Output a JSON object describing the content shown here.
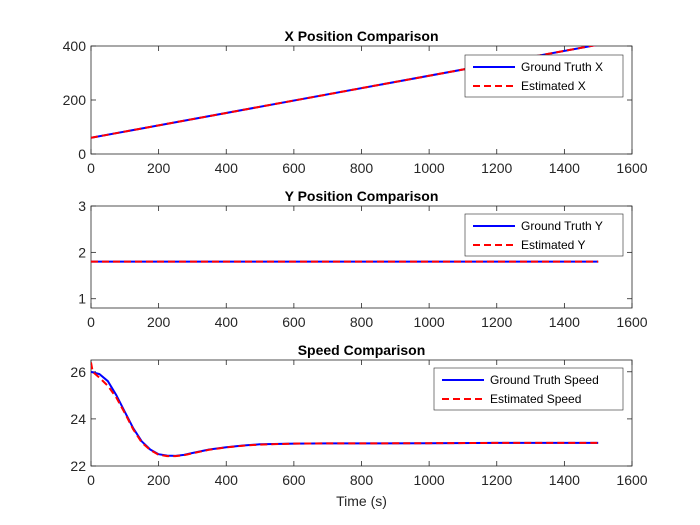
{
  "chart_data": [
    {
      "type": "line",
      "title": "X Position Comparison",
      "xlabel": "",
      "ylabel": "",
      "xlim": [
        0,
        1600
      ],
      "ylim": [
        0,
        400
      ],
      "xticks": [
        0,
        200,
        400,
        600,
        800,
        1000,
        1200,
        1400,
        1600
      ],
      "yticks": [
        0,
        200,
        400
      ],
      "grid": false,
      "legend_position": "top-right",
      "series": [
        {
          "name": "Ground Truth X",
          "color": "#0000ff",
          "style": "solid",
          "x": [
            0,
            1500
          ],
          "y": [
            60,
            405
          ]
        },
        {
          "name": "Estimated X",
          "color": "#ff0000",
          "style": "dashed",
          "x": [
            0,
            1500
          ],
          "y": [
            60,
            405
          ]
        }
      ]
    },
    {
      "type": "line",
      "title": "Y Position Comparison",
      "xlabel": "",
      "ylabel": "",
      "xlim": [
        0,
        1600
      ],
      "ylim": [
        0.8,
        3
      ],
      "xticks": [
        0,
        200,
        400,
        600,
        800,
        1000,
        1200,
        1400,
        1600
      ],
      "yticks": [
        1,
        2,
        3
      ],
      "grid": false,
      "legend_position": "top-right",
      "series": [
        {
          "name": "Ground Truth Y",
          "color": "#0000ff",
          "style": "solid",
          "x": [
            0,
            1500
          ],
          "y": [
            1.8,
            1.8
          ]
        },
        {
          "name": "Estimated Y",
          "color": "#ff0000",
          "style": "dashed",
          "x": [
            0,
            1500
          ],
          "y": [
            1.8,
            1.8
          ]
        }
      ]
    },
    {
      "type": "line",
      "title": "Speed Comparison",
      "xlabel": "Time (s)",
      "ylabel": "",
      "xlim": [
        0,
        1600
      ],
      "ylim": [
        22,
        26.5
      ],
      "xticks": [
        0,
        200,
        400,
        600,
        800,
        1000,
        1200,
        1400,
        1600
      ],
      "yticks": [
        22,
        24,
        26
      ],
      "grid": false,
      "legend_position": "top-right",
      "series": [
        {
          "name": "Ground Truth Speed",
          "color": "#0000ff",
          "style": "solid",
          "x": [
            0,
            25,
            50,
            75,
            100,
            125,
            150,
            175,
            200,
            225,
            250,
            275,
            300,
            350,
            400,
            450,
            500,
            600,
            700,
            800,
            1000,
            1200,
            1500
          ],
          "y": [
            26.0,
            25.9,
            25.6,
            25.0,
            24.3,
            23.6,
            23.05,
            22.7,
            22.5,
            22.44,
            22.43,
            22.47,
            22.55,
            22.7,
            22.8,
            22.87,
            22.92,
            22.95,
            22.96,
            22.96,
            22.97,
            22.98,
            22.98
          ]
        },
        {
          "name": "Estimated Speed",
          "color": "#ff0000",
          "style": "dashed",
          "x": [
            0,
            5,
            25,
            50,
            75,
            100,
            125,
            150,
            175,
            200,
            225,
            250,
            275,
            300,
            350,
            400,
            450,
            500,
            600,
            700,
            800,
            1000,
            1200,
            1500
          ],
          "y": [
            26.4,
            26.0,
            25.75,
            25.4,
            24.9,
            24.25,
            23.55,
            23.0,
            22.68,
            22.48,
            22.42,
            22.42,
            22.46,
            22.54,
            22.69,
            22.79,
            22.86,
            22.91,
            22.95,
            22.96,
            22.96,
            22.97,
            22.98,
            22.98
          ]
        }
      ]
    }
  ]
}
